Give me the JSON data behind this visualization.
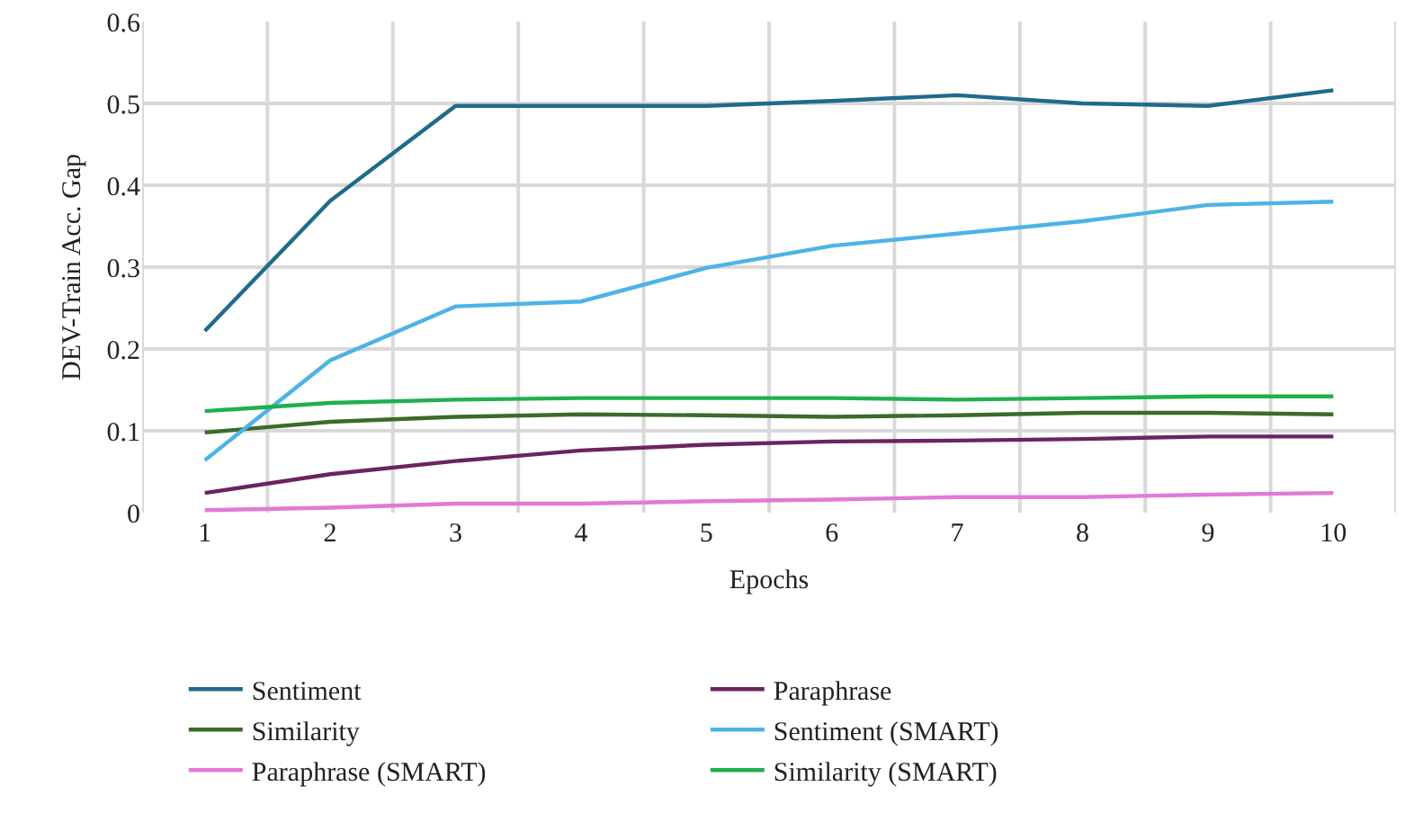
{
  "chart_data": {
    "type": "line",
    "xlabel": "Epochs",
    "ylabel": "DEV-Train Acc. Gap",
    "categories": [
      "1",
      "2",
      "3",
      "4",
      "5",
      "6",
      "7",
      "8",
      "9",
      "10"
    ],
    "ylim": [
      0,
      0.6
    ],
    "yticks": [
      0,
      0.1,
      0.2,
      0.3,
      0.4,
      0.5,
      0.6
    ],
    "grid": true,
    "legend": "bottom",
    "marker": "none",
    "line_style": "solid",
    "series": [
      {
        "name": "Sentiment",
        "color": "#1f6b8c",
        "values": [
          0.222,
          0.381,
          0.497,
          0.497,
          0.497,
          0.503,
          0.51,
          0.5,
          0.497,
          0.516
        ]
      },
      {
        "name": "Paraphrase",
        "color": "#6b2460",
        "values": [
          0.024,
          0.047,
          0.063,
          0.076,
          0.083,
          0.087,
          0.088,
          0.09,
          0.093,
          0.093
        ]
      },
      {
        "name": "Similarity",
        "color": "#3a6b2a",
        "values": [
          0.098,
          0.111,
          0.117,
          0.12,
          0.119,
          0.117,
          0.119,
          0.122,
          0.122,
          0.12
        ]
      },
      {
        "name": "Sentiment (SMART)",
        "color": "#4db3e6",
        "values": [
          0.064,
          0.186,
          0.252,
          0.258,
          0.299,
          0.326,
          0.341,
          0.356,
          0.376,
          0.38
        ]
      },
      {
        "name": "Paraphrase (SMART)",
        "color": "#e07ad6",
        "values": [
          0.003,
          0.006,
          0.011,
          0.011,
          0.014,
          0.016,
          0.019,
          0.019,
          0.022,
          0.024
        ]
      },
      {
        "name": "Similarity (SMART)",
        "color": "#1fb04f",
        "values": [
          0.124,
          0.134,
          0.138,
          0.14,
          0.14,
          0.14,
          0.138,
          0.14,
          0.142,
          0.142
        ]
      }
    ]
  }
}
